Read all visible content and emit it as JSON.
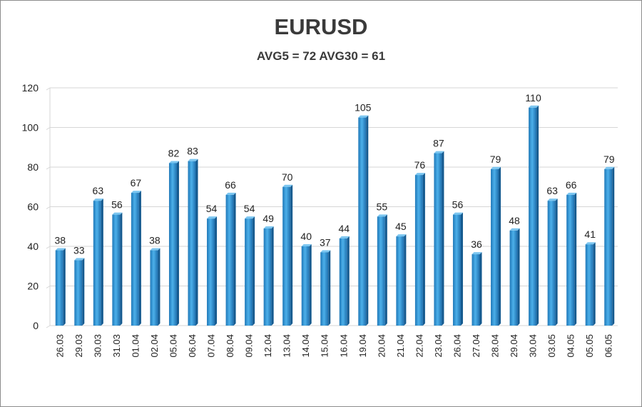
{
  "chart_data": {
    "type": "bar",
    "title": "EURUSD",
    "subtitle": "AVG5 = 72 AVG30 = 61",
    "xlabel": "",
    "ylabel": "",
    "ylim": [
      0,
      120
    ],
    "yticks": [
      0,
      20,
      40,
      60,
      80,
      100,
      120
    ],
    "grid": true,
    "legend": "none",
    "bar_color": "#2e9ad8",
    "categories": [
      "26.03",
      "29.03",
      "30.03",
      "31.03",
      "01.04",
      "02.04",
      "05.04",
      "06.04",
      "07.04",
      "08.04",
      "09.04",
      "12.04",
      "13.04",
      "14.04",
      "15.04",
      "16.04",
      "19.04",
      "20.04",
      "21.04",
      "22.04",
      "23.04",
      "26.04",
      "27.04",
      "28.04",
      "29.04",
      "30.04",
      "03.05",
      "04.05",
      "05.05",
      "06.05"
    ],
    "values": [
      38,
      33,
      63,
      56,
      67,
      38,
      82,
      83,
      54,
      66,
      54,
      49,
      70,
      40,
      37,
      44,
      105,
      55,
      45,
      76,
      87,
      56,
      36,
      79,
      48,
      110,
      63,
      66,
      41,
      79
    ]
  }
}
